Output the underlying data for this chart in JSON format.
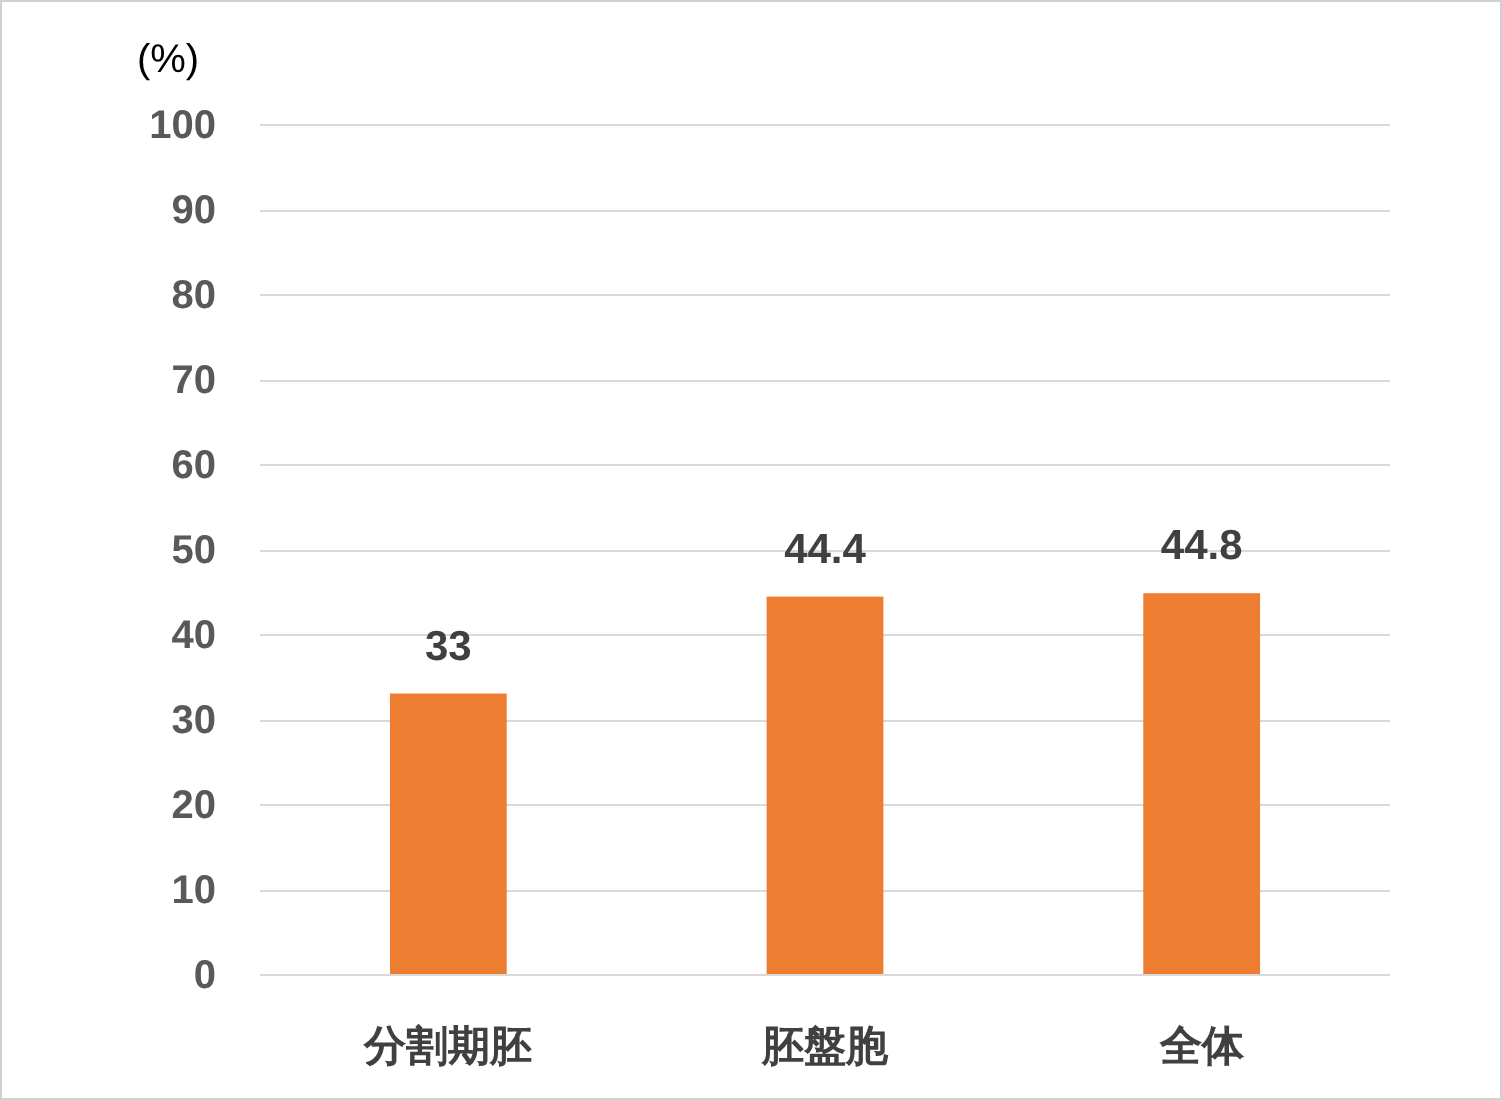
{
  "chart_data": {
    "type": "bar",
    "ylabel": "(%)",
    "categories": [
      "分割期胚",
      "胚盤胞",
      "全体"
    ],
    "values": [
      33,
      44.4,
      44.8
    ],
    "color": "#ed7d31",
    "ylim": [
      0,
      100
    ],
    "yticks": [
      0,
      10,
      20,
      30,
      40,
      50,
      60,
      70,
      80,
      90,
      100
    ],
    "grid": "y",
    "data_labels": true
  }
}
